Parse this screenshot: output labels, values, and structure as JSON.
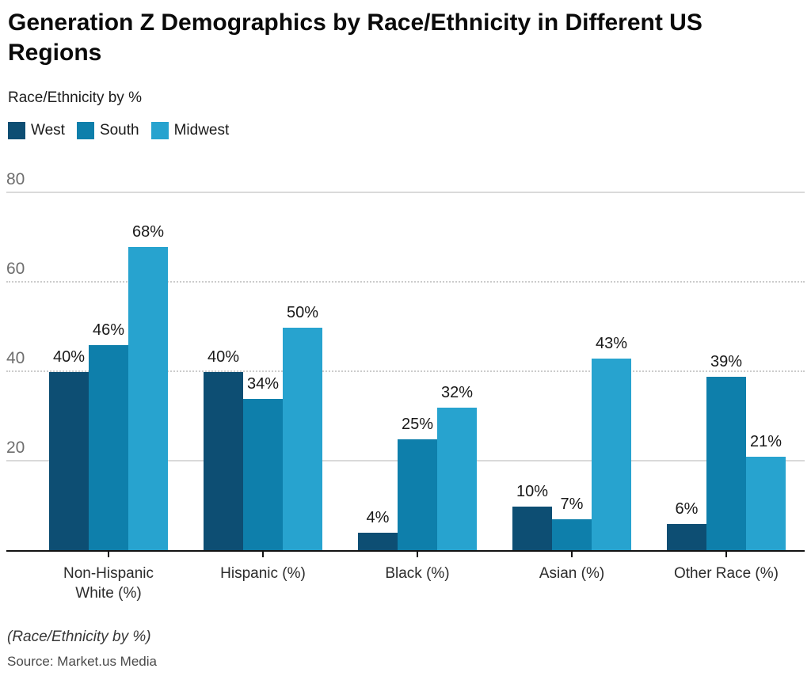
{
  "header": {
    "title": "Generation Z Demographics by Race/Ethnicity in Different US Regions",
    "subtitle": "Race/Ethnicity by %"
  },
  "colors": {
    "west": "#0d4e73",
    "south": "#0e7fab",
    "midwest": "#27a3cf",
    "gridline": "#dadada",
    "axis": "#131313"
  },
  "chart_data": {
    "type": "bar",
    "title": "Generation Z Demographics by Race/Ethnicity in Different US Regions",
    "subtitle": "Race/Ethnicity by %",
    "categories": [
      "Non-Hispanic White (%)",
      "Hispanic (%)",
      "Black (%)",
      "Asian (%)",
      "Other Race (%)"
    ],
    "series": [
      {
        "name": "West",
        "color": "#0d4e73",
        "values": [
          40,
          40,
          4,
          10,
          6
        ]
      },
      {
        "name": "South",
        "color": "#0e7fab",
        "values": [
          46,
          34,
          25,
          7,
          39
        ]
      },
      {
        "name": "Midwest",
        "color": "#27a3cf",
        "values": [
          68,
          50,
          32,
          43,
          21
        ]
      }
    ],
    "value_labels": [
      [
        "40%",
        "40%",
        "4%",
        "10%",
        "6%"
      ],
      [
        "46%",
        "34%",
        "25%",
        "7%",
        "39%"
      ],
      [
        "68%",
        "50%",
        "32%",
        "43%",
        "21%"
      ]
    ],
    "value_suffix": "%",
    "ylim": [
      0,
      80
    ],
    "yticks": [
      20,
      40,
      60,
      80
    ],
    "grid": "horizontal",
    "legend_position": "top-left",
    "xlabel": "",
    "ylabel": "Race/Ethnicity by %"
  },
  "footer": {
    "note": "(Race/Ethnicity by %)",
    "source": "Source: Market.us Media"
  }
}
